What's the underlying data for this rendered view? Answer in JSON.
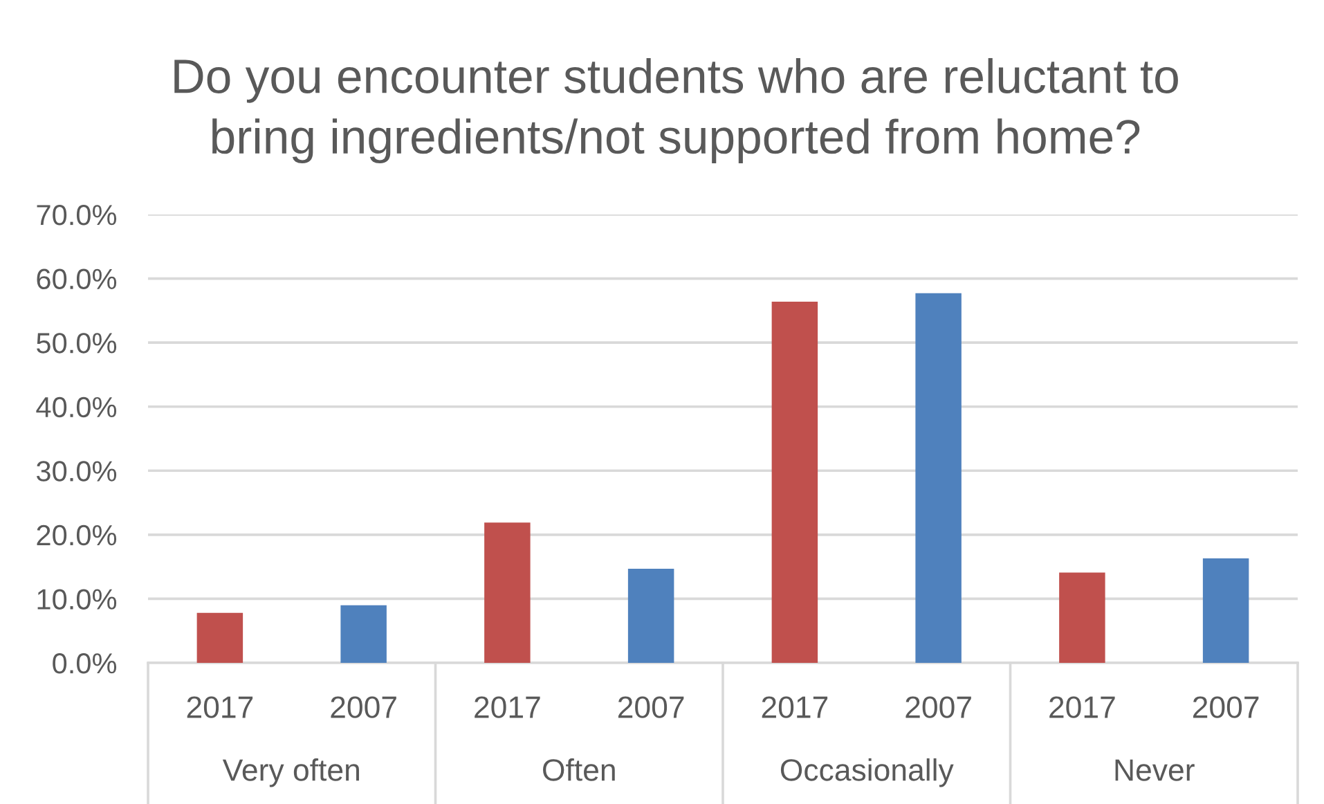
{
  "chart_data": {
    "type": "bar",
    "title": "Do you encounter students who are reluctant to\nbring ingredients/not supported from home?",
    "categories": [
      "Very often",
      "Often",
      "Occasionally",
      "Never"
    ],
    "series": [
      {
        "name": "2017",
        "color": "#c0504d",
        "values": [
          7.8,
          21.9,
          56.4,
          14.1
        ]
      },
      {
        "name": "2007",
        "color": "#4f81bd",
        "values": [
          9.0,
          14.7,
          57.7,
          16.3
        ]
      }
    ],
    "ylim": [
      0,
      70
    ],
    "yticks": [
      {
        "value": 0,
        "label": "0.0%"
      },
      {
        "value": 10,
        "label": "10.0%"
      },
      {
        "value": 20,
        "label": "20.0%"
      },
      {
        "value": 30,
        "label": "30.0%"
      },
      {
        "value": 40,
        "label": "40.0%"
      },
      {
        "value": 50,
        "label": "50.0%"
      },
      {
        "value": 60,
        "label": "60.0%"
      },
      {
        "value": 70,
        "label": "70.0%"
      }
    ],
    "grid": "y"
  }
}
